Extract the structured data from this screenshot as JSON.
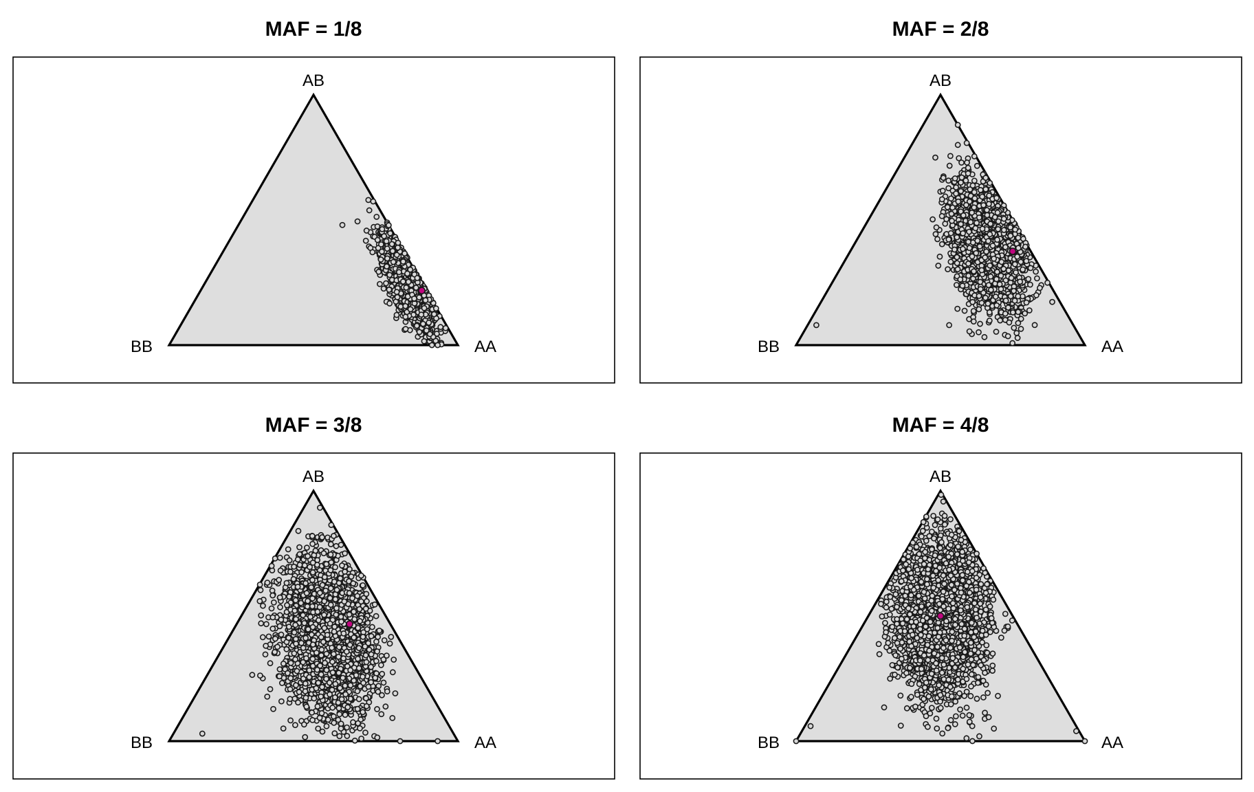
{
  "colors": {
    "triangle_fill": "#dedede",
    "point_fill": "#d9d9d9",
    "point_stroke": "#1a1a1a",
    "highlight_fill": "#c0067f"
  },
  "chart_data": [
    {
      "type": "scatter",
      "subtype": "ternary (de Finetti) genotype-frequency plot",
      "title": "MAF = 1/8",
      "vertices": {
        "top": "AB",
        "left": "BB",
        "right": "AA"
      },
      "maf": 0.125,
      "highlight_point": {
        "AA": 0.766,
        "AB": 0.219,
        "BB": 0.016
      },
      "cloud": {
        "seed": 11,
        "n": 1700,
        "center_AA": 0.7,
        "center_BB": 0.05,
        "spread_AA": 0.085,
        "spread_BB": 0.035,
        "bb_max": 0.22
      },
      "outliers": [
        {
          "AA": 0.4,
          "AB": 0.58,
          "BB": 0.02
        },
        {
          "AA": 0.36,
          "AB": 0.48,
          "BB": 0.16
        },
        {
          "AA": 0.93,
          "AB": 0.0,
          "BB": 0.07
        },
        {
          "AA": 0.91,
          "AB": 0.0,
          "BB": 0.09
        }
      ]
    },
    {
      "type": "scatter",
      "subtype": "ternary (de Finetti) genotype-frequency plot",
      "title": "MAF = 2/8",
      "vertices": {
        "top": "AB",
        "left": "BB",
        "right": "AA"
      },
      "maf": 0.25,
      "highlight_point": {
        "AA": 0.5625,
        "AB": 0.375,
        "BB": 0.0625
      },
      "cloud": {
        "seed": 23,
        "n": 2600,
        "center_AA": 0.46,
        "center_BB": 0.14,
        "spread_AA": 0.1,
        "spread_BB": 0.07,
        "bb_max": 0.45
      },
      "outliers": [
        {
          "AA": 0.03,
          "AB": 0.08,
          "BB": 0.89
        },
        {
          "AA": 0.49,
          "AB": 0.08,
          "BB": 0.43
        },
        {
          "AA": 0.16,
          "AB": 0.8,
          "BB": 0.04
        },
        {
          "AA": 0.12,
          "AB": 0.88,
          "BB": 0.0
        }
      ]
    },
    {
      "type": "scatter",
      "subtype": "ternary (de Finetti) genotype-frequency plot",
      "title": "MAF = 3/8",
      "vertices": {
        "top": "AB",
        "left": "BB",
        "right": "AA"
      },
      "maf": 0.375,
      "highlight_point": {
        "AA": 0.391,
        "AB": 0.469,
        "BB": 0.141
      },
      "cloud": {
        "seed": 37,
        "n": 3000,
        "center_AA": 0.34,
        "center_BB": 0.24,
        "spread_AA": 0.12,
        "spread_BB": 0.1,
        "bb_max": 0.75
      },
      "outliers": [
        {
          "AA": 0.1,
          "AB": 0.03,
          "BB": 0.87
        },
        {
          "AA": 0.58,
          "AB": 0.02,
          "BB": 0.4
        },
        {
          "AA": 0.16,
          "AB": 0.82,
          "BB": 0.02
        },
        {
          "AA": 0.93,
          "AB": 0.0,
          "BB": 0.07
        },
        {
          "AA": 0.8,
          "AB": 0.0,
          "BB": 0.2
        }
      ]
    },
    {
      "type": "scatter",
      "subtype": "ternary (de Finetti) genotype-frequency plot",
      "title": "MAF = 4/8",
      "vertices": {
        "top": "AB",
        "left": "BB",
        "right": "AA"
      },
      "maf": 0.5,
      "highlight_point": {
        "AA": 0.25,
        "AB": 0.5,
        "BB": 0.25
      },
      "cloud": {
        "seed": 53,
        "n": 3200,
        "center_AA": 0.25,
        "center_BB": 0.25,
        "spread_AA": 0.11,
        "spread_BB": 0.11,
        "bb_max": 1.0
      },
      "outliers": [
        {
          "AA": 0.0,
          "AB": 0.0,
          "BB": 1.0
        },
        {
          "AA": 1.0,
          "AB": 0.0,
          "BB": 0.0
        },
        {
          "AA": 0.02,
          "AB": 0.06,
          "BB": 0.92
        },
        {
          "AA": 0.95,
          "AB": 0.04,
          "BB": 0.01
        },
        {
          "AA": 0.58,
          "AB": 0.06,
          "BB": 0.36
        },
        {
          "AA": 0.66,
          "AB": 0.05,
          "BB": 0.29
        },
        {
          "AA": 0.4,
          "AB": 0.1,
          "BB": 0.5
        }
      ]
    }
  ]
}
